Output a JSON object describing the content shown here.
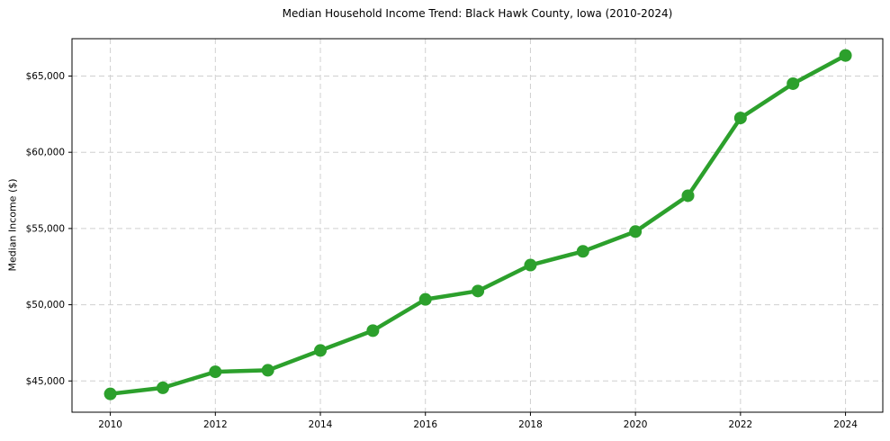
{
  "title": "Median Household Income Trend: Black Hawk County, Iowa (2010-2024)",
  "chart_data": {
    "type": "line",
    "title": "Median Household Income Trend: Black Hawk County, Iowa (2010-2024)",
    "xlabel": "",
    "ylabel": "Median Income ($)",
    "series_name": "Median Household Income",
    "x": [
      2010,
      2011,
      2012,
      2013,
      2014,
      2015,
      2016,
      2017,
      2018,
      2019,
      2020,
      2021,
      2022,
      2023,
      2024
    ],
    "values": [
      44150,
      44550,
      45600,
      45700,
      47000,
      48300,
      50350,
      50900,
      52600,
      53500,
      54800,
      57150,
      62250,
      64500,
      66350
    ],
    "xlim": [
      2009.27,
      2024.71
    ],
    "ylim": [
      42950,
      67450
    ],
    "xticks": {
      "values": [
        2010,
        2012,
        2014,
        2016,
        2018,
        2020,
        2022,
        2024
      ],
      "labels": [
        "2010",
        "2012",
        "2014",
        "2016",
        "2018",
        "2020",
        "2022",
        "2024"
      ]
    },
    "yticks": {
      "values": [
        45000,
        50000,
        55000,
        60000,
        65000
      ],
      "labels": [
        "$45,000",
        "$50,000",
        "$55,000",
        "$60,000",
        "$65,000"
      ]
    },
    "grid": true,
    "grid_style": "dashed",
    "legend": "none",
    "marker": "circle",
    "colors": {
      "line": "#2ca02c",
      "marker": "#2ca02c",
      "grid": "#d0d0d0",
      "frame": "#000000",
      "background": "#ffffff",
      "text": "#000000"
    }
  }
}
